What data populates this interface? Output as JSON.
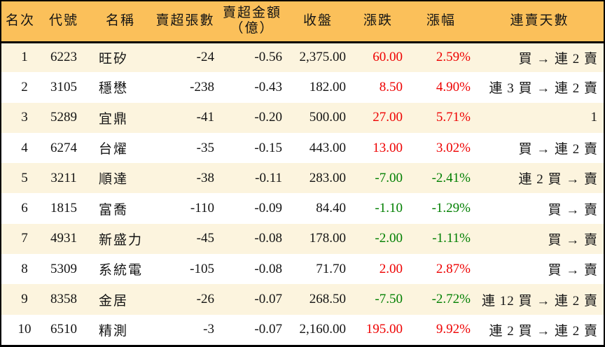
{
  "colors": {
    "header_bg": "#fbc05a",
    "row_alt_bg": "#fcf4de",
    "up": "#ee0000",
    "down": "#007f00",
    "border": "#000000"
  },
  "chart_data": {
    "type": "table",
    "columns": [
      {
        "key": "rank",
        "label": "名次"
      },
      {
        "key": "code",
        "label": "代號"
      },
      {
        "key": "name",
        "label": "名稱"
      },
      {
        "key": "sell_volume",
        "label": "賣超張數"
      },
      {
        "key": "sell_amount",
        "label": "賣超金額",
        "label2": "（億）"
      },
      {
        "key": "close",
        "label": "收盤"
      },
      {
        "key": "change",
        "label": "漲跌"
      },
      {
        "key": "change_pct",
        "label": "漲幅"
      },
      {
        "key": "streak",
        "label": "連賣天數"
      }
    ],
    "rows": [
      {
        "rank": "1",
        "code": "6223",
        "name": "旺矽",
        "sell_volume": "-24",
        "sell_amount": "-0.56",
        "close": "2,375.00",
        "change": "60.00",
        "change_pct": "2.59%",
        "streak": "買 → 連 2 賣",
        "trend": "up"
      },
      {
        "rank": "2",
        "code": "3105",
        "name": "穩懋",
        "sell_volume": "-238",
        "sell_amount": "-0.43",
        "close": "182.00",
        "change": "8.50",
        "change_pct": "4.90%",
        "streak": "連 3 買 → 連 2 賣",
        "trend": "up"
      },
      {
        "rank": "3",
        "code": "5289",
        "name": "宜鼎",
        "sell_volume": "-41",
        "sell_amount": "-0.20",
        "close": "500.00",
        "change": "27.00",
        "change_pct": "5.71%",
        "streak": "1",
        "trend": "up"
      },
      {
        "rank": "4",
        "code": "6274",
        "name": "台燿",
        "sell_volume": "-35",
        "sell_amount": "-0.15",
        "close": "443.00",
        "change": "13.00",
        "change_pct": "3.02%",
        "streak": "買 → 連 2 賣",
        "trend": "up"
      },
      {
        "rank": "5",
        "code": "3211",
        "name": "順達",
        "sell_volume": "-38",
        "sell_amount": "-0.11",
        "close": "283.00",
        "change": "-7.00",
        "change_pct": "-2.41%",
        "streak": "連 2 買 → 賣",
        "trend": "down"
      },
      {
        "rank": "6",
        "code": "1815",
        "name": "富喬",
        "sell_volume": "-110",
        "sell_amount": "-0.09",
        "close": "84.40",
        "change": "-1.10",
        "change_pct": "-1.29%",
        "streak": "買 → 賣",
        "trend": "down"
      },
      {
        "rank": "7",
        "code": "4931",
        "name": "新盛力",
        "sell_volume": "-45",
        "sell_amount": "-0.08",
        "close": "178.00",
        "change": "-2.00",
        "change_pct": "-1.11%",
        "streak": "買 → 賣",
        "trend": "down"
      },
      {
        "rank": "8",
        "code": "5309",
        "name": "系統電",
        "sell_volume": "-105",
        "sell_amount": "-0.08",
        "close": "71.70",
        "change": "2.00",
        "change_pct": "2.87%",
        "streak": "買 → 賣",
        "trend": "up"
      },
      {
        "rank": "9",
        "code": "8358",
        "name": "金居",
        "sell_volume": "-26",
        "sell_amount": "-0.07",
        "close": "268.50",
        "change": "-7.50",
        "change_pct": "-2.72%",
        "streak": "連 12 買 → 連 2 賣",
        "trend": "down"
      },
      {
        "rank": "10",
        "code": "6510",
        "name": "精測",
        "sell_volume": "-3",
        "sell_amount": "-0.07",
        "close": "2,160.00",
        "change": "195.00",
        "change_pct": "9.92%",
        "streak": "連 2 買 → 連 2 賣",
        "trend": "up"
      }
    ]
  }
}
